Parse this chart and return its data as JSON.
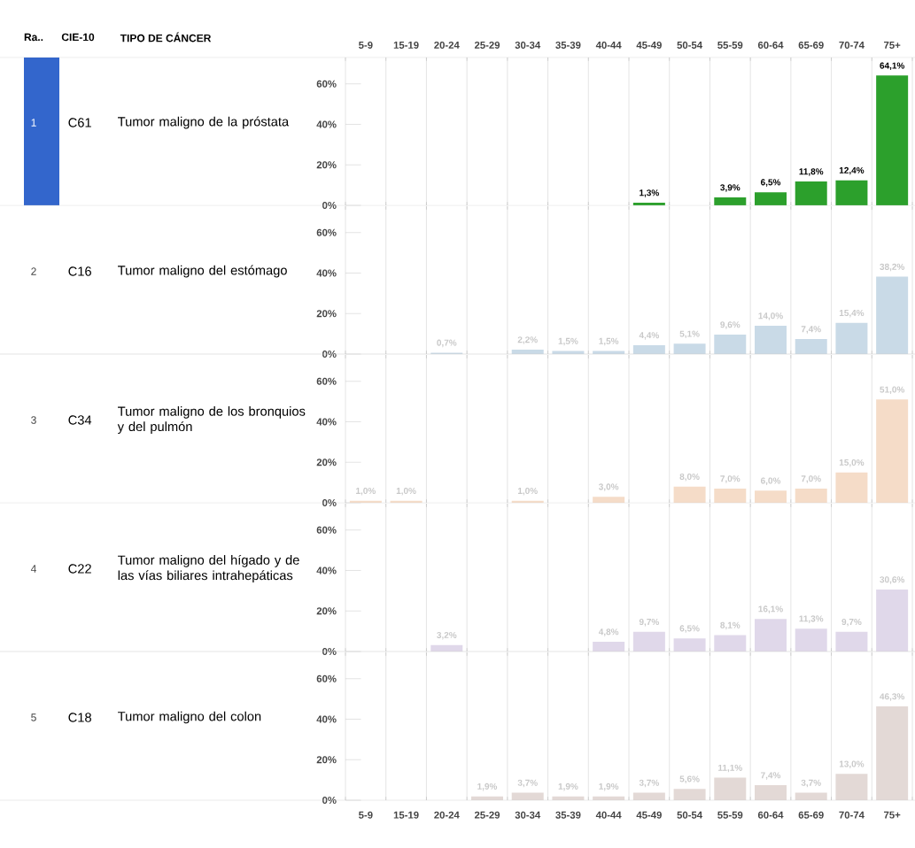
{
  "chart_data": [
    {
      "type": "bar",
      "title": "Tumor maligno de la próstata",
      "annotations": [
        "1",
        "C61",
        "Ra..",
        "CIE-10",
        "TIPO DE CÁNCER"
      ],
      "categories": [
        "5-9",
        "15-19",
        "20-24",
        "25-29",
        "30-34",
        "35-39",
        "40-44",
        "45-49",
        "50-54",
        "55-59",
        "60-64",
        "65-69",
        "70-74",
        "75+"
      ],
      "values": [
        null,
        null,
        null,
        null,
        null,
        null,
        null,
        1.3,
        null,
        3.9,
        6.5,
        11.8,
        12.4,
        64.1
      ],
      "value_labels": [
        null,
        null,
        null,
        null,
        null,
        null,
        null,
        "1,3%",
        null,
        "3,9%",
        "6,5%",
        "11,8%",
        "12,4%",
        "64,1%"
      ],
      "color": "#2ca02c",
      "ylim": [
        0,
        73
      ],
      "yticks": [
        {
          "value": 0,
          "label": "0%"
        },
        {
          "value": 20,
          "label": "20%"
        },
        {
          "value": 40,
          "label": "40%"
        },
        {
          "value": 60,
          "label": "60%"
        }
      ],
      "grid": "x"
    },
    {
      "type": "bar",
      "title": "Tumor maligno del estómago",
      "annotations": [
        "2",
        "C16"
      ],
      "categories": [
        null,
        null,
        null,
        null,
        null,
        null,
        null,
        null,
        null,
        null,
        null,
        null,
        null,
        null
      ],
      "values": [
        null,
        null,
        0.7,
        null,
        2.2,
        1.5,
        1.5,
        4.4,
        5.1,
        9.6,
        14.0,
        7.4,
        15.4,
        38.2
      ],
      "value_labels": [
        null,
        null,
        "0,7%",
        null,
        "2,2%",
        "1,5%",
        "1,5%",
        "4,4%",
        "5,1%",
        "9,6%",
        "14,0%",
        "7,4%",
        "15,4%",
        "38,2%"
      ],
      "color": "#c9dae7",
      "ylim": [
        0,
        73
      ],
      "yticks": [
        {
          "value": 0,
          "label": "0%"
        },
        {
          "value": 20,
          "label": "20%"
        },
        {
          "value": 40,
          "label": "40%"
        },
        {
          "value": 60,
          "label": "60%"
        }
      ],
      "grid": "x",
      "tick_labels": "y"
    },
    {
      "type": "bar",
      "title": "Tumor maligno de los bronquios y del pulmón",
      "annotations": [
        "3",
        "C34"
      ],
      "categories": [
        null,
        null,
        null,
        null,
        null,
        null,
        null,
        null,
        null,
        null,
        null,
        null,
        null,
        null
      ],
      "values": [
        1.0,
        1.0,
        null,
        null,
        1.0,
        null,
        3.0,
        null,
        8.0,
        7.0,
        6.0,
        7.0,
        15.0,
        51.0
      ],
      "value_labels": [
        "1,0%",
        "1,0%",
        null,
        null,
        "1,0%",
        null,
        "3,0%",
        null,
        "8,0%",
        "7,0%",
        "6,0%",
        "7,0%",
        "15,0%",
        "51,0%"
      ],
      "color": "#f5dcc8",
      "ylim": [
        0,
        73
      ],
      "yticks": [
        {
          "value": 0,
          "label": "0%"
        },
        {
          "value": 20,
          "label": "20%"
        },
        {
          "value": 40,
          "label": "40%"
        },
        {
          "value": 60,
          "label": "60%"
        }
      ],
      "grid": "x",
      "tick_labels": "y"
    },
    {
      "type": "bar",
      "title": "Tumor maligno del hígado y de las vías biliares intrahepáticas",
      "annotations": [
        "4",
        "C22"
      ],
      "categories": [
        null,
        null,
        null,
        null,
        null,
        null,
        null,
        null,
        null,
        null,
        null,
        null,
        null,
        null
      ],
      "values": [
        null,
        null,
        3.2,
        null,
        null,
        null,
        4.8,
        9.7,
        6.5,
        8.1,
        16.1,
        11.3,
        9.7,
        30.6
      ],
      "value_labels": [
        null,
        null,
        "3,2%",
        null,
        null,
        null,
        "4,8%",
        "9,7%",
        "6,5%",
        "8,1%",
        "16,1%",
        "11,3%",
        "9,7%",
        "30,6%"
      ],
      "color": "#e0d8ea",
      "ylim": [
        0,
        73
      ],
      "yticks": [
        {
          "value": 0,
          "label": "0%"
        },
        {
          "value": 20,
          "label": "20%"
        },
        {
          "value": 40,
          "label": "40%"
        },
        {
          "value": 60,
          "label": "60%"
        }
      ],
      "grid": "x",
      "tick_labels": "y"
    },
    {
      "type": "bar",
      "title": "Tumor maligno del colon",
      "annotations": [
        "5",
        "C18"
      ],
      "categories": [
        "5-9",
        "15-19",
        "20-24",
        "25-29",
        "30-34",
        "35-39",
        "40-44",
        "45-49",
        "50-54",
        "55-59",
        "60-64",
        "65-69",
        "70-74",
        "75+"
      ],
      "values": [
        null,
        null,
        null,
        1.9,
        3.7,
        1.9,
        1.9,
        3.7,
        5.6,
        11.1,
        7.4,
        3.7,
        13.0,
        46.3
      ],
      "value_labels": [
        null,
        null,
        null,
        "1,9%",
        "3,7%",
        "1,9%",
        "1,9%",
        "3,7%",
        "5,6%",
        "11,1%",
        "7,4%",
        "3,7%",
        "13,0%",
        "46,3%"
      ],
      "color": "#e3d9d6",
      "ylim": [
        0,
        73
      ],
      "yticks": [
        {
          "value": 0,
          "label": "0%"
        },
        {
          "value": 20,
          "label": "20%"
        },
        {
          "value": 40,
          "label": "40%"
        },
        {
          "value": 60,
          "label": "60%"
        }
      ],
      "grid": "x"
    }
  ]
}
